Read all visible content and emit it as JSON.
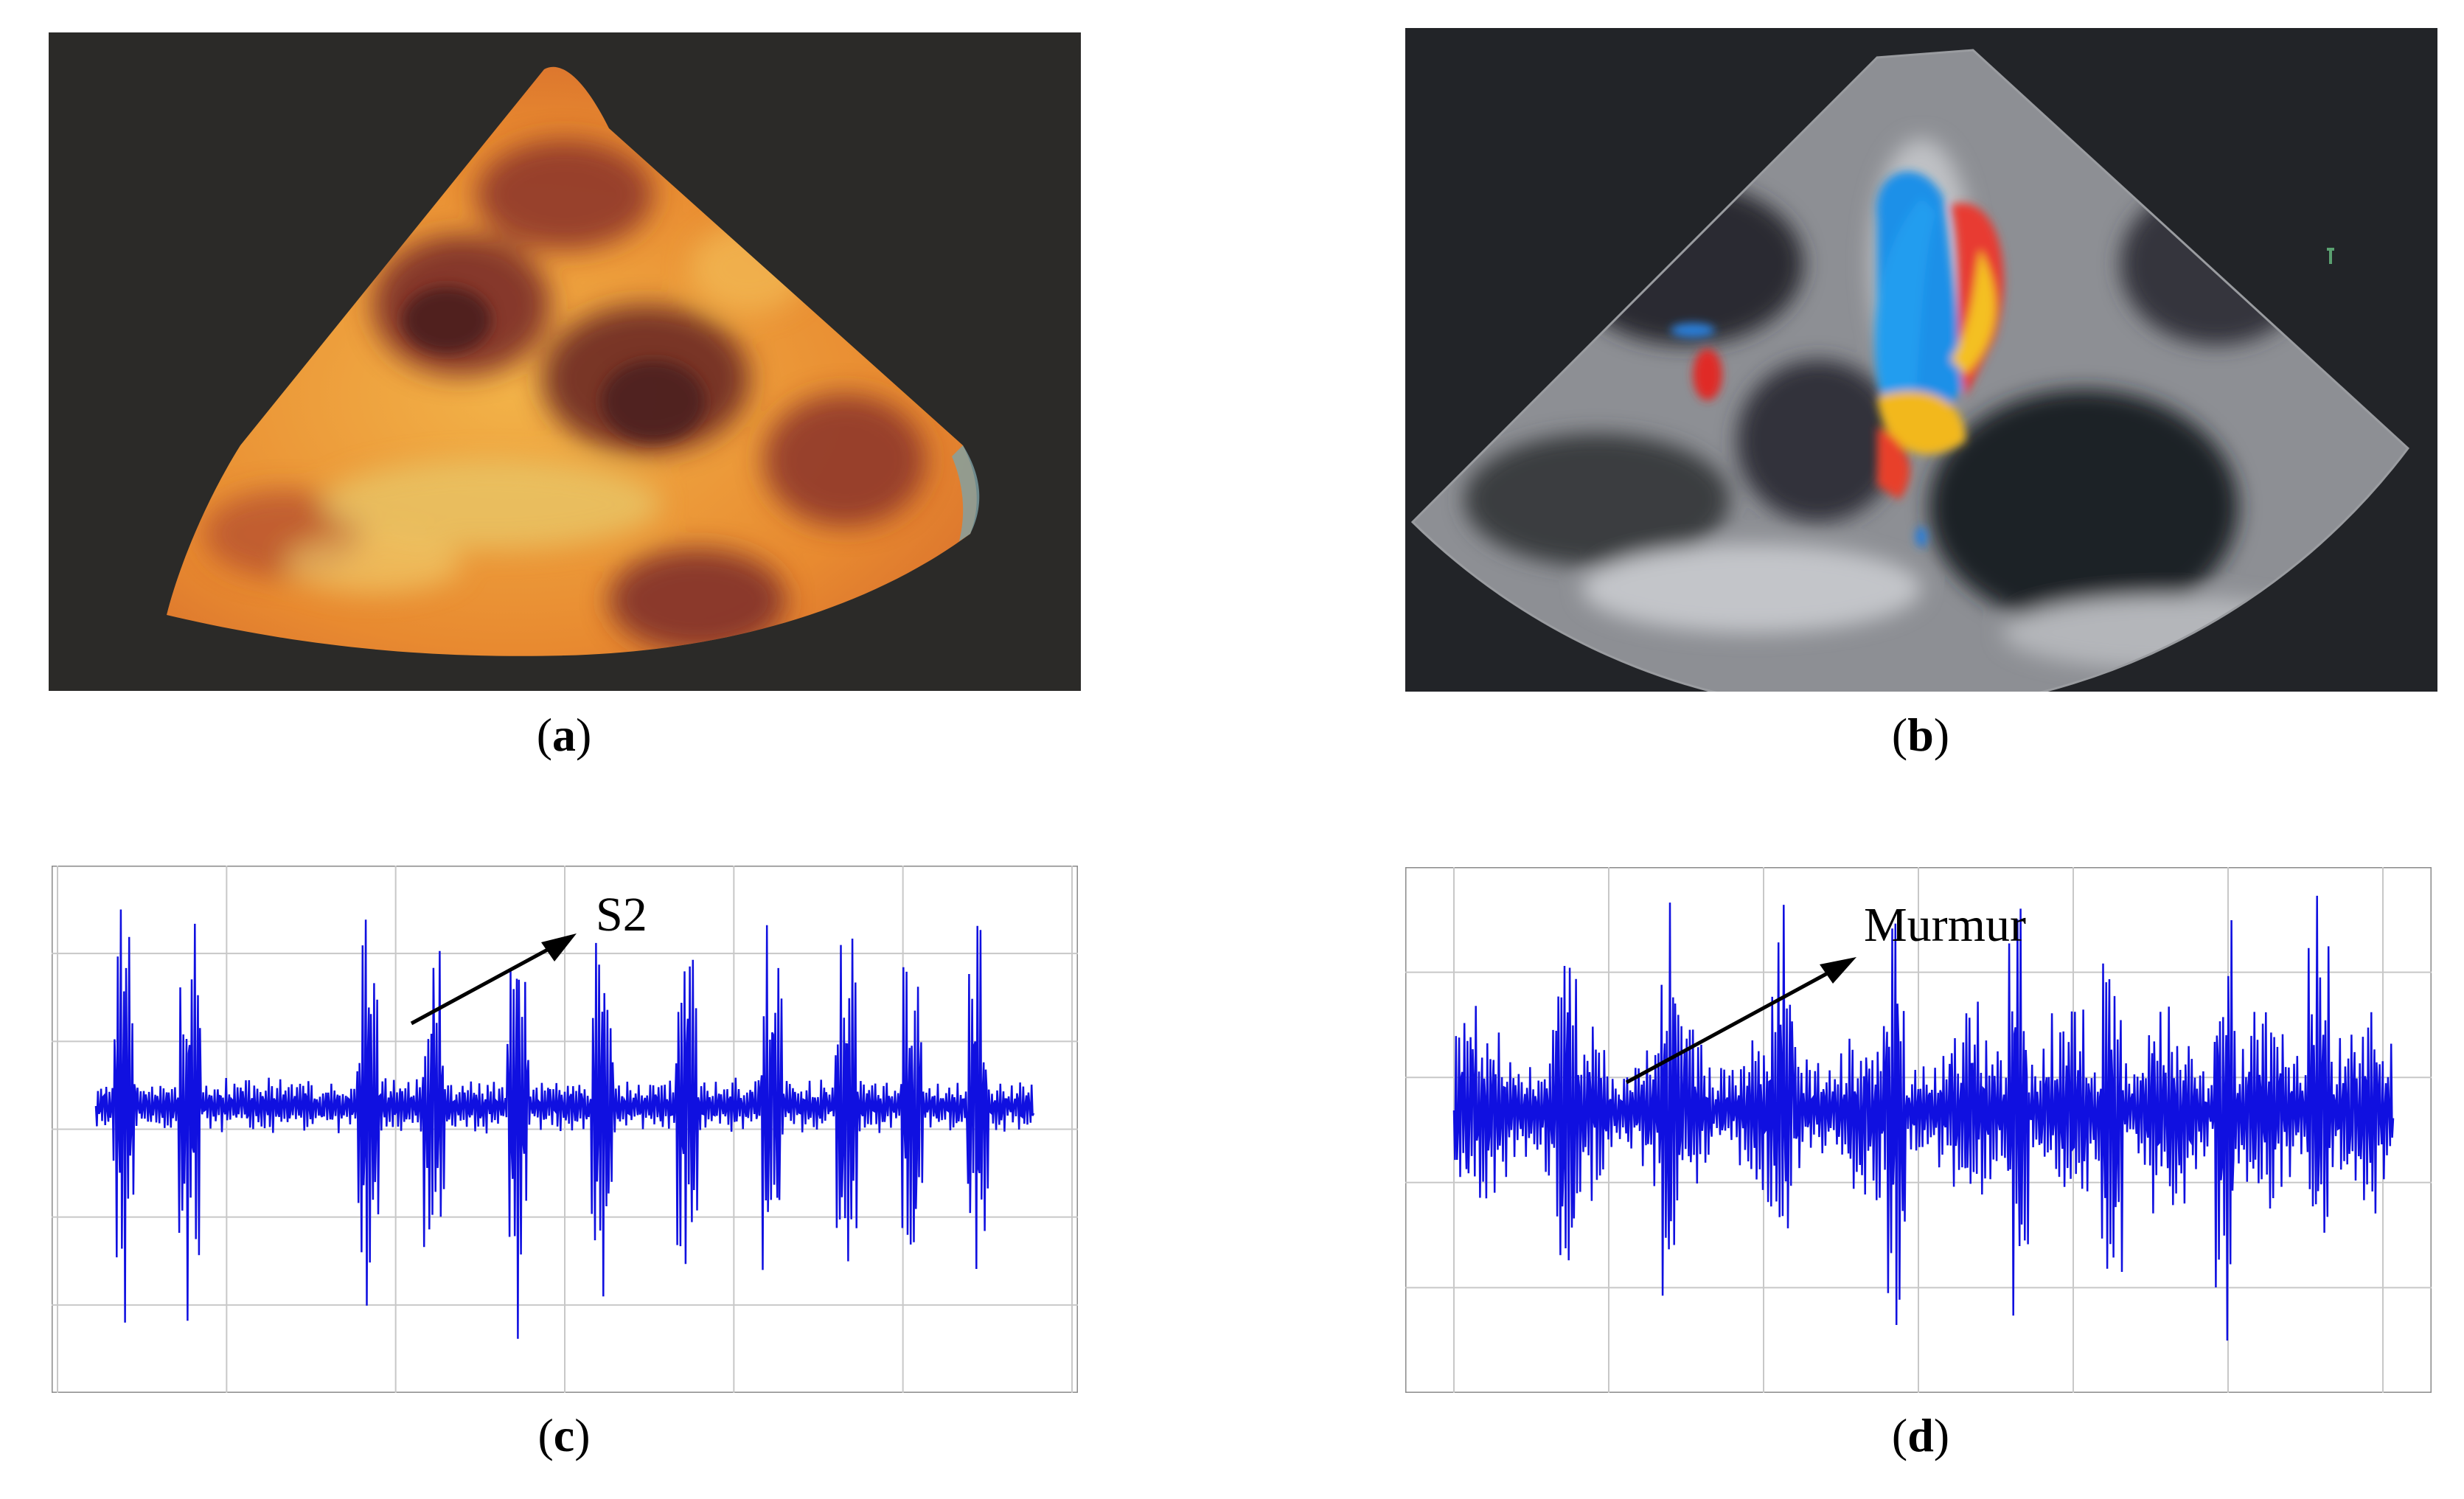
{
  "figure": {
    "panels": [
      {
        "id": "a",
        "caption_letter": "a",
        "kind": "3d-echocardiogram-image"
      },
      {
        "id": "b",
        "caption_letter": "b",
        "kind": "color-doppler-echocardiogram-image"
      },
      {
        "id": "c",
        "caption_letter": "c",
        "kind": "phonocardiogram-waveform",
        "annotation": "S2"
      },
      {
        "id": "d",
        "caption_letter": "d",
        "kind": "phonocardiogram-waveform",
        "annotation": "Murmur"
      }
    ]
  },
  "colors": {
    "waveform": "#1010e0",
    "grid": "#c8c8c8",
    "arrow": "#000000",
    "echo_background": "#2b2a28",
    "doppler_background": "#222428"
  },
  "chart_data": [
    {
      "type": "line",
      "panel": "c",
      "title": "",
      "xlabel": "",
      "ylabel": "",
      "grid": true,
      "annotations": [
        "S2"
      ]
    },
    {
      "type": "line",
      "panel": "d",
      "title": "",
      "xlabel": "",
      "ylabel": "",
      "grid": true,
      "annotations": [
        "Murmur"
      ]
    }
  ]
}
